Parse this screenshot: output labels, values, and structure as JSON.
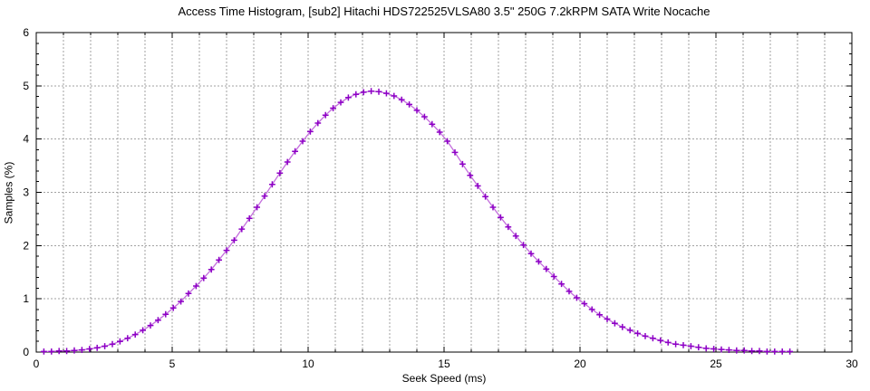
{
  "chart_data": {
    "type": "line",
    "plot_style": "linespoints",
    "title": "Access Time Histogram, [sub2] Hitachi HDS722525VLSA80 3.5\" 250G 7.2kRPM SATA Write Nocache",
    "xlabel": "Seek Speed (ms)",
    "ylabel": "Samples (%)",
    "xlim": [
      0,
      30
    ],
    "ylim": [
      0,
      6
    ],
    "xticks": [
      0,
      5,
      10,
      15,
      20,
      25,
      30
    ],
    "yticks": [
      0,
      1,
      2,
      3,
      4,
      5,
      6
    ],
    "x_minor_step": 1,
    "y_minor_step": 0.2,
    "grid": {
      "on": true,
      "style": "dashed",
      "x_every": 1,
      "y_every": 1,
      "color": "#a2a2a2"
    },
    "legend_position": "none",
    "border_color": "#000000",
    "series": [
      {
        "name": "seek-time-samples",
        "marker": "plus",
        "marker_color": "#8d00c6",
        "line_color": "#c46fdd",
        "x": [
          0.28,
          0.56,
          0.84,
          1.12,
          1.4,
          1.68,
          1.96,
          2.24,
          2.52,
          2.8,
          3.08,
          3.36,
          3.64,
          3.92,
          4.2,
          4.48,
          4.76,
          5.04,
          5.32,
          5.6,
          5.88,
          6.16,
          6.44,
          6.72,
          7.0,
          7.28,
          7.56,
          7.84,
          8.12,
          8.4,
          8.68,
          8.96,
          9.24,
          9.52,
          9.8,
          10.08,
          10.36,
          10.64,
          10.92,
          11.2,
          11.48,
          11.76,
          12.04,
          12.32,
          12.6,
          12.88,
          13.16,
          13.44,
          13.72,
          14.0,
          14.28,
          14.56,
          14.84,
          15.12,
          15.4,
          15.68,
          15.96,
          16.24,
          16.52,
          16.8,
          17.08,
          17.36,
          17.64,
          17.92,
          18.2,
          18.48,
          18.76,
          19.04,
          19.32,
          19.6,
          19.88,
          20.16,
          20.44,
          20.72,
          21.0,
          21.28,
          21.56,
          21.84,
          22.12,
          22.4,
          22.68,
          22.96,
          23.24,
          23.52,
          23.8,
          24.08,
          24.36,
          24.64,
          24.92,
          25.2,
          25.48,
          25.76,
          26.04,
          26.32,
          26.6,
          26.88,
          27.16,
          27.44,
          27.72
        ],
        "y": [
          0.01,
          0.01,
          0.02,
          0.02,
          0.03,
          0.04,
          0.06,
          0.08,
          0.11,
          0.15,
          0.2,
          0.26,
          0.33,
          0.41,
          0.5,
          0.6,
          0.71,
          0.83,
          0.95,
          1.1,
          1.24,
          1.39,
          1.55,
          1.73,
          1.91,
          2.1,
          2.31,
          2.51,
          2.72,
          2.93,
          3.15,
          3.36,
          3.57,
          3.77,
          3.96,
          4.14,
          4.3,
          4.45,
          4.58,
          4.69,
          4.78,
          4.84,
          4.88,
          4.9,
          4.89,
          4.86,
          4.81,
          4.74,
          4.65,
          4.54,
          4.42,
          4.28,
          4.13,
          3.96,
          3.75,
          3.53,
          3.32,
          3.12,
          2.92,
          2.72,
          2.53,
          2.35,
          2.18,
          2.01,
          1.85,
          1.7,
          1.56,
          1.42,
          1.28,
          1.14,
          1.02,
          0.91,
          0.8,
          0.7,
          0.62,
          0.54,
          0.47,
          0.41,
          0.35,
          0.3,
          0.26,
          0.22,
          0.18,
          0.15,
          0.13,
          0.11,
          0.09,
          0.07,
          0.06,
          0.05,
          0.04,
          0.03,
          0.03,
          0.02,
          0.02,
          0.01,
          0.01,
          0.01,
          0.01
        ]
      }
    ]
  }
}
